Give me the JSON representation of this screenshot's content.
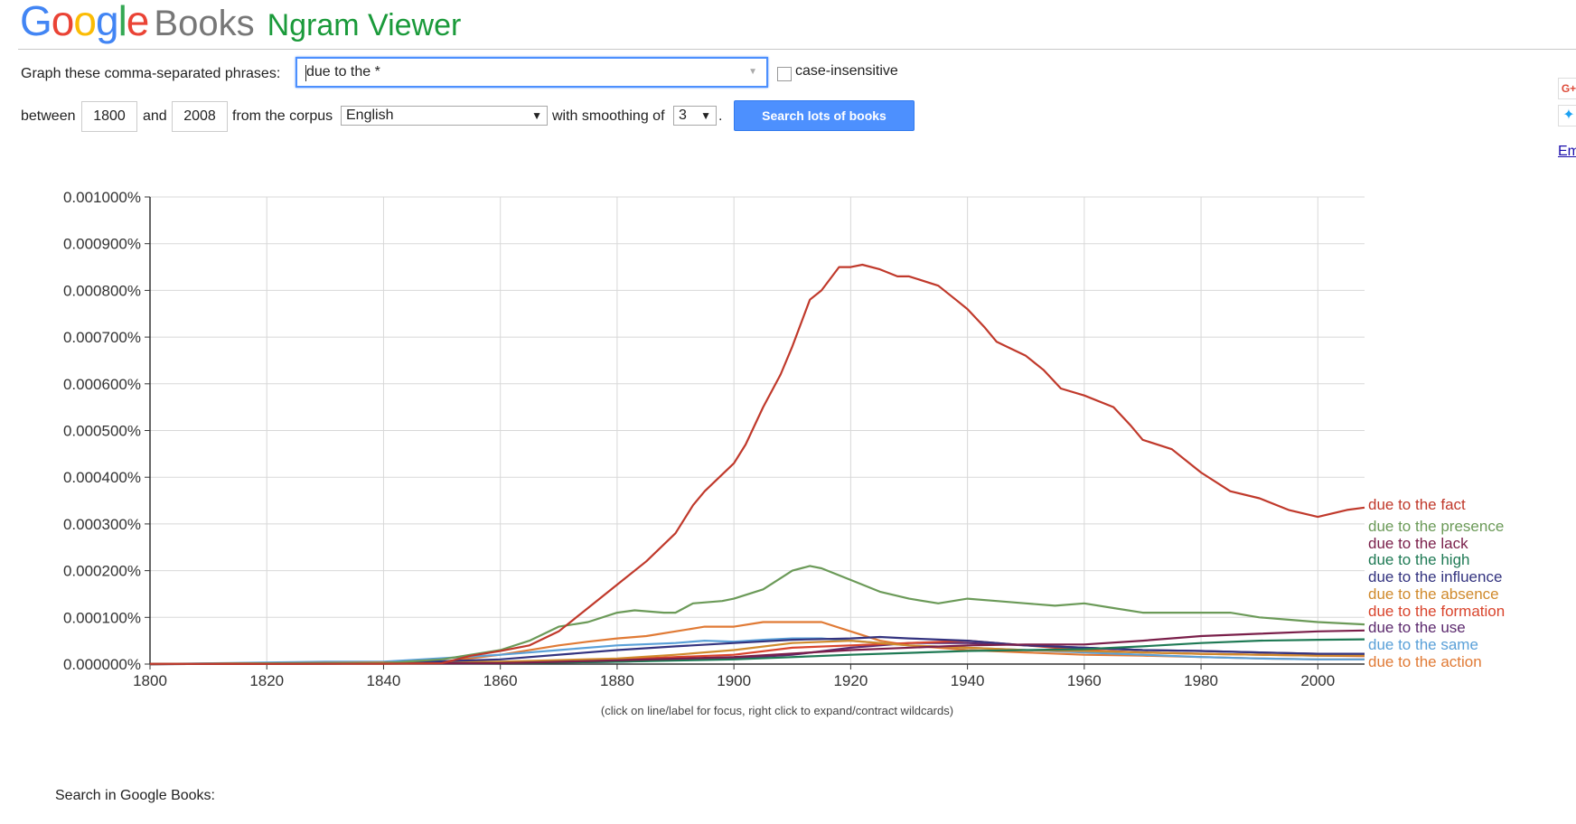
{
  "header": {
    "google_letters": [
      {
        "ch": "G",
        "color": "#4285f4"
      },
      {
        "ch": "o",
        "color": "#ea4335"
      },
      {
        "ch": "o",
        "color": "#fbbc05"
      },
      {
        "ch": "g",
        "color": "#4285f4"
      },
      {
        "ch": "l",
        "color": "#34a853"
      },
      {
        "ch": "e",
        "color": "#ea4335"
      }
    ],
    "books": "Books",
    "product": "Ngram Viewer"
  },
  "form": {
    "phrases_label": "Graph these comma-separated phrases:",
    "query": "due to the *",
    "case_insensitive_label": "case-insensitive",
    "between_label": "between",
    "start_year": "1800",
    "and_label": "and",
    "end_year": "2008",
    "corpus_label": "from the corpus",
    "corpus": "English",
    "smoothing_label": "with smoothing of",
    "smoothing": "3",
    "period": ".",
    "search_button": "Search lots of books"
  },
  "side": {
    "gplus": "G+",
    "twitter_icon": "twitter-icon",
    "embed": "Em"
  },
  "chart_caption": "(click on line/label for focus, right click to expand/contract wildcards)",
  "search_in_books": "Search in Google Books:",
  "chart_data": {
    "type": "line",
    "xlim": [
      1800,
      2008
    ],
    "ylim": [
      0,
      0.001
    ],
    "x_ticks": [
      1800,
      1820,
      1840,
      1860,
      1880,
      1900,
      1920,
      1940,
      1960,
      1980,
      2000
    ],
    "x_tick_labels": [
      "1800",
      "1820",
      "1840",
      "1860",
      "1880",
      "1900",
      "1920",
      "1940",
      "1960",
      "1980",
      "2000"
    ],
    "y_ticks": [
      0,
      0.0001,
      0.0002,
      0.0003,
      0.0004,
      0.0005,
      0.0006,
      0.0007,
      0.0008,
      0.0009,
      0.001
    ],
    "y_tick_labels": [
      "0.000000%",
      "0.000100%",
      "0.000200%",
      "0.000300%",
      "0.000400%",
      "0.000500%",
      "0.000600%",
      "0.000700%",
      "0.000800%",
      "0.000900%",
      "0.001000%"
    ],
    "grid": true,
    "legend": "right, at line ends",
    "series": [
      {
        "name": "due to the fact",
        "color": "#c0392b",
        "points": [
          [
            1800,
            5e-07
          ],
          [
            1820,
            3e-07
          ],
          [
            1840,
            8e-07
          ],
          [
            1850,
            2e-06
          ],
          [
            1855,
            1.8e-05
          ],
          [
            1860,
            2.8e-05
          ],
          [
            1865,
            4e-05
          ],
          [
            1870,
            7e-05
          ],
          [
            1875,
            0.00012
          ],
          [
            1880,
            0.00017
          ],
          [
            1885,
            0.00022
          ],
          [
            1890,
            0.00028
          ],
          [
            1893,
            0.00034
          ],
          [
            1895,
            0.00037
          ],
          [
            1900,
            0.00043
          ],
          [
            1902,
            0.00047
          ],
          [
            1905,
            0.00055
          ],
          [
            1908,
            0.00062
          ],
          [
            1910,
            0.00068
          ],
          [
            1913,
            0.00078
          ],
          [
            1915,
            0.0008
          ],
          [
            1918,
            0.00085
          ],
          [
            1920,
            0.00085
          ],
          [
            1922,
            0.000855
          ],
          [
            1925,
            0.000845
          ],
          [
            1928,
            0.00083
          ],
          [
            1930,
            0.00083
          ],
          [
            1935,
            0.00081
          ],
          [
            1938,
            0.00078
          ],
          [
            1940,
            0.00076
          ],
          [
            1943,
            0.00072
          ],
          [
            1945,
            0.00069
          ],
          [
            1950,
            0.00066
          ],
          [
            1953,
            0.00063
          ],
          [
            1956,
            0.00059
          ],
          [
            1960,
            0.000575
          ],
          [
            1965,
            0.00055
          ],
          [
            1968,
            0.00051
          ],
          [
            1970,
            0.00048
          ],
          [
            1975,
            0.00046
          ],
          [
            1980,
            0.00041
          ],
          [
            1985,
            0.00037
          ],
          [
            1990,
            0.000355
          ],
          [
            1995,
            0.00033
          ],
          [
            2000,
            0.000315
          ],
          [
            2005,
            0.00033
          ],
          [
            2008,
            0.000335
          ]
        ]
      },
      {
        "name": "due to the presence",
        "color": "#6b9a58",
        "points": [
          [
            1800,
            5e-07
          ],
          [
            1840,
            2e-06
          ],
          [
            1850,
            1e-05
          ],
          [
            1860,
            3e-05
          ],
          [
            1865,
            5e-05
          ],
          [
            1870,
            8e-05
          ],
          [
            1875,
            9e-05
          ],
          [
            1880,
            0.00011
          ],
          [
            1883,
            0.000115
          ],
          [
            1888,
            0.00011
          ],
          [
            1890,
            0.00011
          ],
          [
            1893,
            0.00013
          ],
          [
            1898,
            0.000135
          ],
          [
            1900,
            0.00014
          ],
          [
            1905,
            0.00016
          ],
          [
            1910,
            0.0002
          ],
          [
            1913,
            0.00021
          ],
          [
            1915,
            0.000205
          ],
          [
            1920,
            0.00018
          ],
          [
            1925,
            0.000155
          ],
          [
            1930,
            0.00014
          ],
          [
            1935,
            0.00013
          ],
          [
            1940,
            0.00014
          ],
          [
            1945,
            0.000135
          ],
          [
            1950,
            0.00013
          ],
          [
            1955,
            0.000125
          ],
          [
            1960,
            0.00013
          ],
          [
            1965,
            0.00012
          ],
          [
            1970,
            0.00011
          ],
          [
            1975,
            0.00011
          ],
          [
            1980,
            0.00011
          ],
          [
            1985,
            0.00011
          ],
          [
            1990,
            0.0001
          ],
          [
            1995,
            9.5e-05
          ],
          [
            2000,
            9e-05
          ],
          [
            2008,
            8.5e-05
          ]
        ]
      },
      {
        "name": "due to the lack",
        "color": "#7a1f4a",
        "points": [
          [
            1800,
            0
          ],
          [
            1860,
            2e-06
          ],
          [
            1880,
            8e-06
          ],
          [
            1900,
            1.5e-05
          ],
          [
            1920,
            3e-05
          ],
          [
            1940,
            4e-05
          ],
          [
            1950,
            4.2e-05
          ],
          [
            1960,
            4.2e-05
          ],
          [
            1970,
            5e-05
          ],
          [
            1980,
            6e-05
          ],
          [
            1990,
            6.5e-05
          ],
          [
            2000,
            7e-05
          ],
          [
            2008,
            7.2e-05
          ]
        ]
      },
      {
        "name": "due to the high",
        "color": "#1f7a55",
        "points": [
          [
            1800,
            0
          ],
          [
            1860,
            2e-06
          ],
          [
            1880,
            5e-06
          ],
          [
            1900,
            1e-05
          ],
          [
            1920,
            2e-05
          ],
          [
            1940,
            2.8e-05
          ],
          [
            1960,
            3.2e-05
          ],
          [
            1970,
            3.8e-05
          ],
          [
            1980,
            4.5e-05
          ],
          [
            1990,
            5e-05
          ],
          [
            2000,
            5.2e-05
          ],
          [
            2008,
            5.3e-05
          ]
        ]
      },
      {
        "name": "due to the influence",
        "color": "#33337f",
        "points": [
          [
            1800,
            0
          ],
          [
            1840,
            2e-06
          ],
          [
            1860,
            1e-05
          ],
          [
            1880,
            3e-05
          ],
          [
            1890,
            3.8e-05
          ],
          [
            1900,
            4.5e-05
          ],
          [
            1910,
            5.2e-05
          ],
          [
            1920,
            5.5e-05
          ],
          [
            1925,
            5.8e-05
          ],
          [
            1930,
            5.5e-05
          ],
          [
            1940,
            5e-05
          ],
          [
            1950,
            4e-05
          ],
          [
            1960,
            3.5e-05
          ],
          [
            1970,
            3e-05
          ],
          [
            1980,
            2.8e-05
          ],
          [
            1990,
            2.5e-05
          ],
          [
            2000,
            2.2e-05
          ],
          [
            2008,
            2.2e-05
          ]
        ]
      },
      {
        "name": "due to the absence",
        "color": "#d08a2c",
        "points": [
          [
            1800,
            0
          ],
          [
            1860,
            5e-06
          ],
          [
            1880,
            1.2e-05
          ],
          [
            1890,
            2e-05
          ],
          [
            1900,
            3e-05
          ],
          [
            1910,
            4.5e-05
          ],
          [
            1920,
            5e-05
          ],
          [
            1930,
            4e-05
          ],
          [
            1940,
            3.5e-05
          ],
          [
            1950,
            3e-05
          ],
          [
            1960,
            2.8e-05
          ],
          [
            1970,
            2.5e-05
          ],
          [
            1980,
            2.2e-05
          ],
          [
            1990,
            2e-05
          ],
          [
            2000,
            1.8e-05
          ],
          [
            2008,
            1.8e-05
          ]
        ]
      },
      {
        "name": "due to the formation",
        "color": "#d9442c",
        "points": [
          [
            1800,
            0
          ],
          [
            1860,
            4e-06
          ],
          [
            1880,
            1e-05
          ],
          [
            1900,
            2e-05
          ],
          [
            1910,
            3.5e-05
          ],
          [
            1920,
            4e-05
          ],
          [
            1930,
            4.5e-05
          ],
          [
            1940,
            5e-05
          ],
          [
            1950,
            4e-05
          ],
          [
            1960,
            3e-05
          ],
          [
            1970,
            2.5e-05
          ],
          [
            1980,
            2.2e-05
          ],
          [
            1990,
            2e-05
          ],
          [
            2000,
            1.8e-05
          ],
          [
            2008,
            1.7e-05
          ]
        ]
      },
      {
        "name": "due to the use",
        "color": "#5c2a6e",
        "points": [
          [
            1800,
            0
          ],
          [
            1860,
            2e-06
          ],
          [
            1880,
            5e-06
          ],
          [
            1900,
            1.2e-05
          ],
          [
            1910,
            2e-05
          ],
          [
            1920,
            3.5e-05
          ],
          [
            1930,
            4.5e-05
          ],
          [
            1940,
            4.5e-05
          ],
          [
            1950,
            4e-05
          ],
          [
            1960,
            3.5e-05
          ],
          [
            1970,
            3e-05
          ],
          [
            1980,
            2.8e-05
          ],
          [
            1990,
            2.5e-05
          ],
          [
            2000,
            2.2e-05
          ],
          [
            2008,
            2.2e-05
          ]
        ]
      },
      {
        "name": "due to the same",
        "color": "#5aa0d8",
        "points": [
          [
            1800,
            0
          ],
          [
            1830,
            5e-06
          ],
          [
            1840,
            5e-06
          ],
          [
            1860,
            2e-05
          ],
          [
            1870,
            3e-05
          ],
          [
            1880,
            4e-05
          ],
          [
            1890,
            4.5e-05
          ],
          [
            1895,
            5e-05
          ],
          [
            1900,
            4.8e-05
          ],
          [
            1905,
            5.2e-05
          ],
          [
            1910,
            5.5e-05
          ],
          [
            1915,
            5.5e-05
          ],
          [
            1920,
            5e-05
          ],
          [
            1930,
            4e-05
          ],
          [
            1940,
            3.5e-05
          ],
          [
            1950,
            3e-05
          ],
          [
            1960,
            2.5e-05
          ],
          [
            1970,
            2e-05
          ],
          [
            1980,
            1.5e-05
          ],
          [
            1990,
            1.2e-05
          ],
          [
            2000,
            1e-05
          ],
          [
            2008,
            1e-05
          ]
        ]
      },
      {
        "name": "due to the action",
        "color": "#e07a35",
        "points": [
          [
            1800,
            0
          ],
          [
            1850,
            5e-06
          ],
          [
            1860,
            2e-05
          ],
          [
            1870,
            4e-05
          ],
          [
            1875,
            4.8e-05
          ],
          [
            1880,
            5.5e-05
          ],
          [
            1885,
            6e-05
          ],
          [
            1890,
            7e-05
          ],
          [
            1895,
            8e-05
          ],
          [
            1900,
            8e-05
          ],
          [
            1905,
            9e-05
          ],
          [
            1910,
            9e-05
          ],
          [
            1915,
            9e-05
          ],
          [
            1920,
            7e-05
          ],
          [
            1925,
            5e-05
          ],
          [
            1930,
            4e-05
          ],
          [
            1940,
            3e-05
          ],
          [
            1950,
            2.5e-05
          ],
          [
            1960,
            2e-05
          ],
          [
            1970,
            1.8e-05
          ],
          [
            1980,
            1.5e-05
          ],
          [
            1990,
            1.2e-05
          ],
          [
            2000,
            1e-05
          ],
          [
            2008,
            1e-05
          ]
        ]
      }
    ]
  }
}
